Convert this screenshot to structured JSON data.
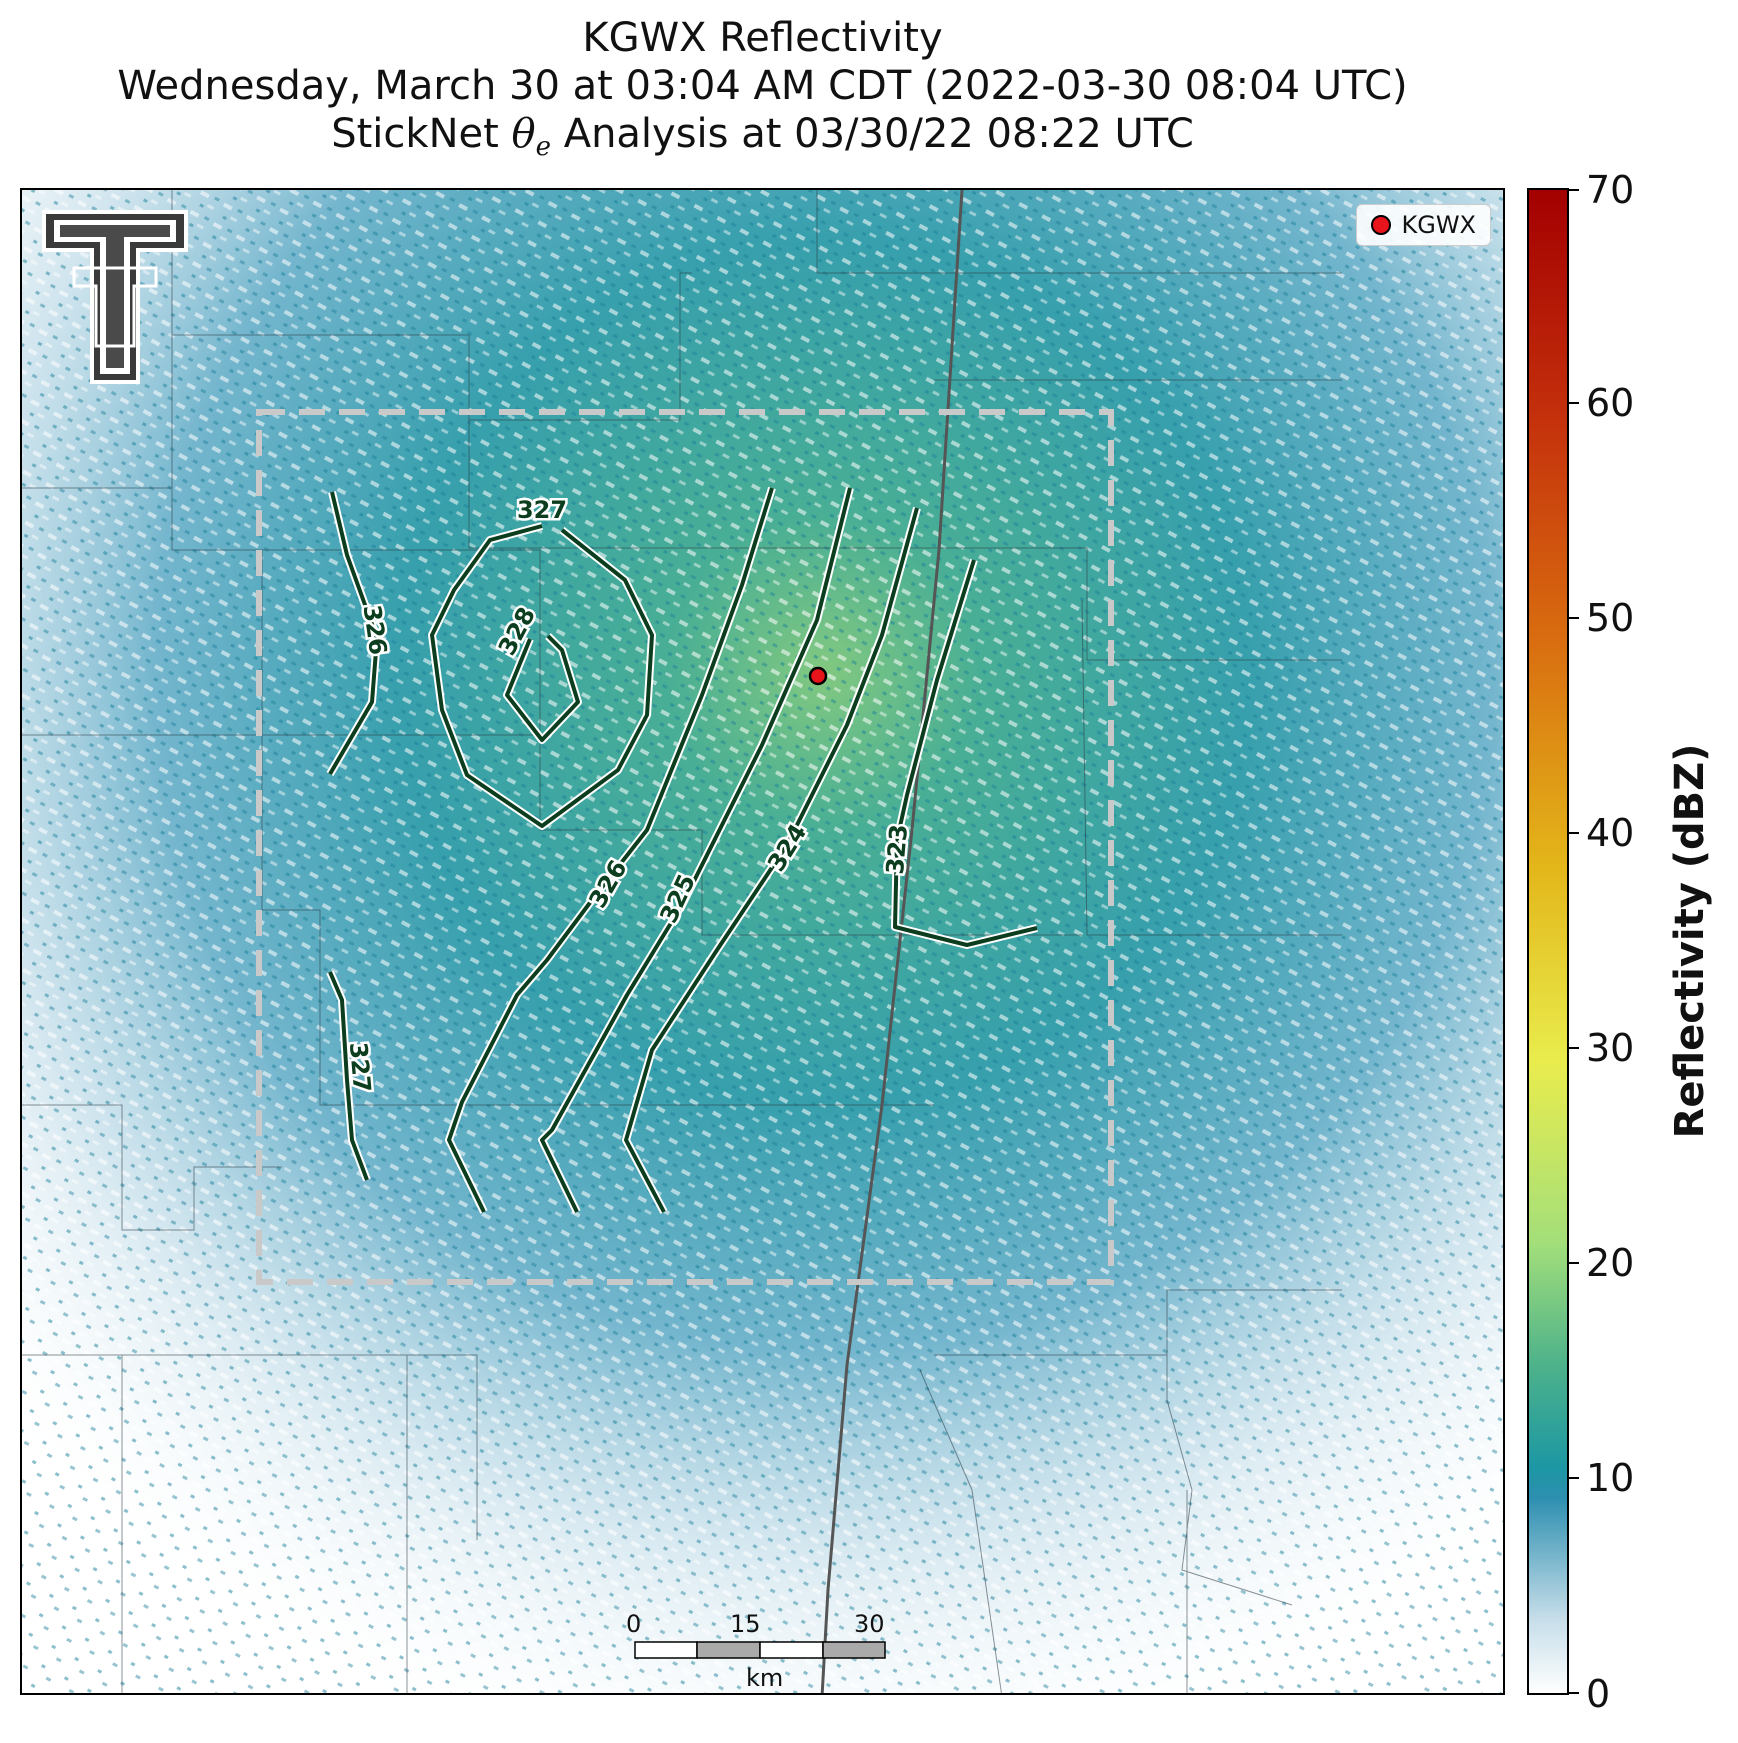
{
  "title": {
    "line1": "KGWX Reflectivity",
    "line2": "Wednesday, March 30 at 03:04 AM CDT (2022-03-30 08:04 UTC)",
    "line3_prefix": "StickNet ",
    "line3_symbol": "θ",
    "line3_sub": "e",
    "line3_suffix": " Analysis at 03/30/22 08:22 UTC"
  },
  "legend": {
    "label": "KGWX"
  },
  "scale_bar": {
    "ticks": [
      "0",
      "15",
      "30"
    ],
    "unit": "km"
  },
  "colorbar": {
    "title": "Reflectivity (dBZ)",
    "ticks": [
      "0",
      "10",
      "20",
      "30",
      "40",
      "50",
      "60",
      "70"
    ],
    "range": [
      0,
      70
    ]
  },
  "contour_labels": [
    "327",
    "328",
    "326",
    "326",
    "325",
    "324",
    "323",
    "327"
  ],
  "colors": {
    "contour": "#0b3d1e",
    "radar_low": "#2d8fb0",
    "radar_mid": "#1fa196",
    "radar_high": "#9ad26c",
    "station": "#e8141b"
  }
}
